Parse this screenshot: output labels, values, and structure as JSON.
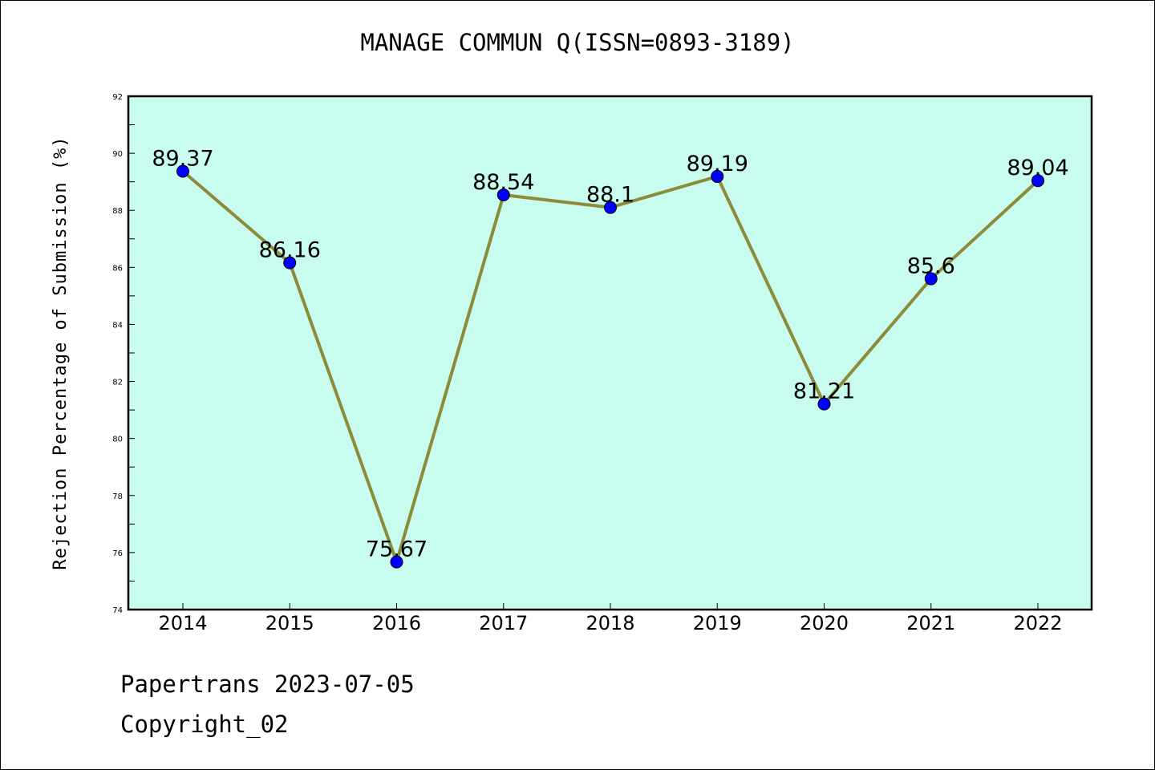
{
  "chart_data": {
    "type": "line",
    "title": "MANAGE COMMUN Q(ISSN=0893-3189)",
    "xlabel": "",
    "ylabel": "Rejection Percentage of Submission (%)",
    "categories": [
      "2014",
      "2015",
      "2016",
      "2017",
      "2018",
      "2019",
      "2020",
      "2021",
      "2022"
    ],
    "series": [
      {
        "values": [
          89.37,
          86.16,
          75.67,
          88.54,
          88.1,
          89.19,
          81.21,
          85.6,
          89.04
        ],
        "labels": [
          "89.37",
          "86.16",
          "75.67",
          "88.54",
          "88.1",
          "89.19",
          "81.21",
          "85.6",
          "89.04"
        ]
      }
    ],
    "ylim": [
      74,
      92
    ],
    "yticks": [
      "74",
      "76",
      "78",
      "80",
      "82",
      "84",
      "86",
      "88",
      "90",
      "92"
    ],
    "grid": false,
    "colors": {
      "plot_background": "#c8fcee",
      "line": "#8b8b3a",
      "marker": "#0000ff"
    }
  },
  "footer": {
    "line1": "Papertrans 2023-07-05",
    "line2": "Copyright_02"
  }
}
